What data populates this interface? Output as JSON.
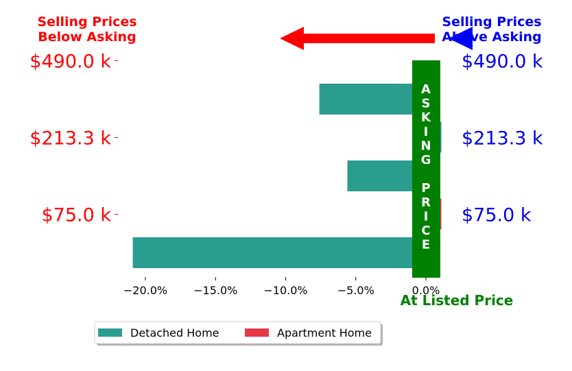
{
  "header": {
    "left_line1": "Selling Prices",
    "left_line2": "Below Asking",
    "right_line1": "Selling Prices",
    "right_line2": "Above Asking"
  },
  "asking_price_band": {
    "letters": [
      "A",
      "S",
      "K",
      "I",
      "N",
      "G",
      "",
      "P",
      "R",
      "I",
      "C",
      "E"
    ]
  },
  "at_listed_price_label": "At Listed Price",
  "colors": {
    "detached": "#2a9d8f",
    "apartment": "#e63946",
    "asking_band": "#008000",
    "left_text": "#ff0000",
    "right_text": "#0000ee",
    "left_arrow": "#ff0000",
    "right_arrow": "#0000ff"
  },
  "chart_data": {
    "type": "bar",
    "orientation": "horizontal",
    "xlim": [
      -22,
      1
    ],
    "x_ticks": [
      -20,
      -15,
      -10,
      -5,
      0
    ],
    "x_tick_labels": [
      "−20.0%",
      "−15.0%",
      "−10.0%",
      "−5.0%",
      "0.0%"
    ],
    "y_ticks": [
      {
        "left": "$490.0 k",
        "right": "$490.0 k"
      },
      {
        "left": "$213.3 k",
        "right": "$213.3 k"
      },
      {
        "left": "$75.0 k",
        "right": "$75.0 k"
      }
    ],
    "series": [
      {
        "name": "Detached Home",
        "values": [
          -7.6,
          1.1,
          -5.6,
          null,
          -20.9
        ]
      },
      {
        "name": "Apartment Home",
        "values": [
          null,
          null,
          null,
          1.1,
          null
        ]
      }
    ],
    "legend_position": "bottom-center",
    "grid": false
  }
}
